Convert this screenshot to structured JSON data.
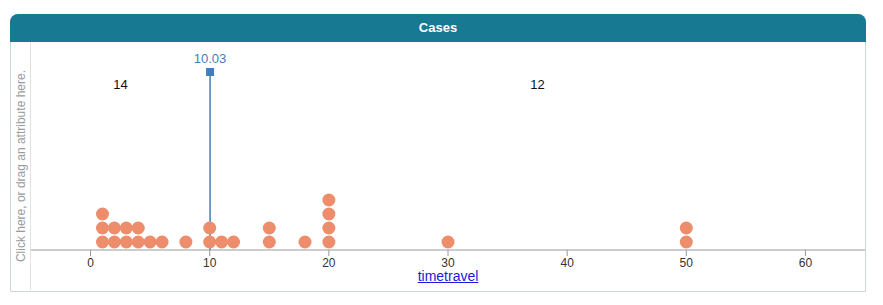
{
  "chart_data": {
    "type": "scatter",
    "title": "Cases",
    "x_label": "timetravel",
    "y_label": "Click here, or drag an attribute here.",
    "x": [
      1,
      1,
      1,
      2,
      2,
      3,
      3,
      4,
      4,
      5,
      6,
      8,
      10,
      10,
      11,
      12,
      15,
      15,
      18,
      20,
      20,
      20,
      20,
      30,
      50,
      50
    ],
    "xlim": [
      -5,
      65
    ],
    "xticks": [
      0,
      10,
      20,
      30,
      40,
      50,
      60
    ],
    "color": "#ee8d6b",
    "marker": "circle",
    "tick_labels": "x",
    "movable_value": {
      "value": 10.03,
      "counts": [
        14,
        12
      ],
      "color": "#3f7fbf"
    }
  }
}
